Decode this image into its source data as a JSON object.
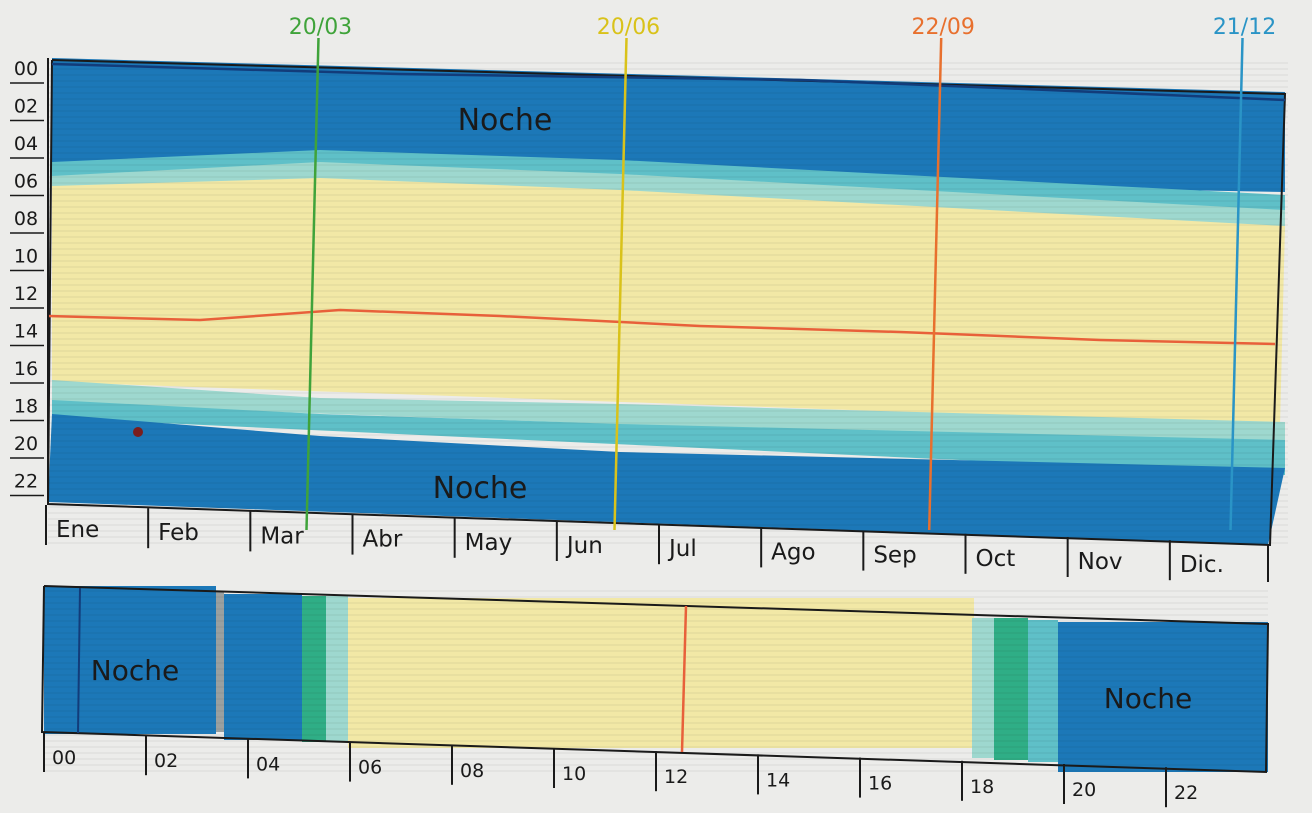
{
  "colors": {
    "paper": "#ececea",
    "night": "#1c78b8",
    "night_dark": "#1560a0",
    "twilight_outer": "#5fc0c8",
    "twilight_inner": "#9ed8cf",
    "twilight_green": "#2fae86",
    "day": "#f2e8a6",
    "noon": "#e8603a",
    "ink": "#1a1a1a",
    "equinox_march": "#3fa33a",
    "solstice_june": "#d9c21a",
    "equinox_sept": "#e8702e",
    "solstice_dec": "#2a94c6"
  },
  "annual": {
    "markers": [
      {
        "label": "20/03",
        "color": "#3fa33a",
        "day_of_year": 79
      },
      {
        "label": "20/06",
        "color": "#d9c21a",
        "day_of_year": 171
      },
      {
        "label": "22/09",
        "color": "#e8702e",
        "day_of_year": 265
      },
      {
        "label": "21/12",
        "color": "#2a94c6",
        "day_of_year": 355
      }
    ],
    "hour_labels": [
      "00",
      "02",
      "04",
      "06",
      "08",
      "10",
      "12",
      "14",
      "16",
      "18",
      "20",
      "22"
    ],
    "month_labels": [
      "Ene",
      "Feb",
      "Mar",
      "Abr",
      "May",
      "Jun",
      "Jul",
      "Ago",
      "Sep",
      "Oct",
      "Nov",
      "Dic."
    ],
    "night_label_top": "Noche",
    "night_label_bottom": "Noche"
  },
  "daily": {
    "hour_labels": [
      "00",
      "02",
      "04",
      "06",
      "08",
      "10",
      "12",
      "14",
      "16",
      "18",
      "20",
      "22"
    ],
    "night_label_left": "Noche",
    "night_label_right": "Noche"
  }
}
